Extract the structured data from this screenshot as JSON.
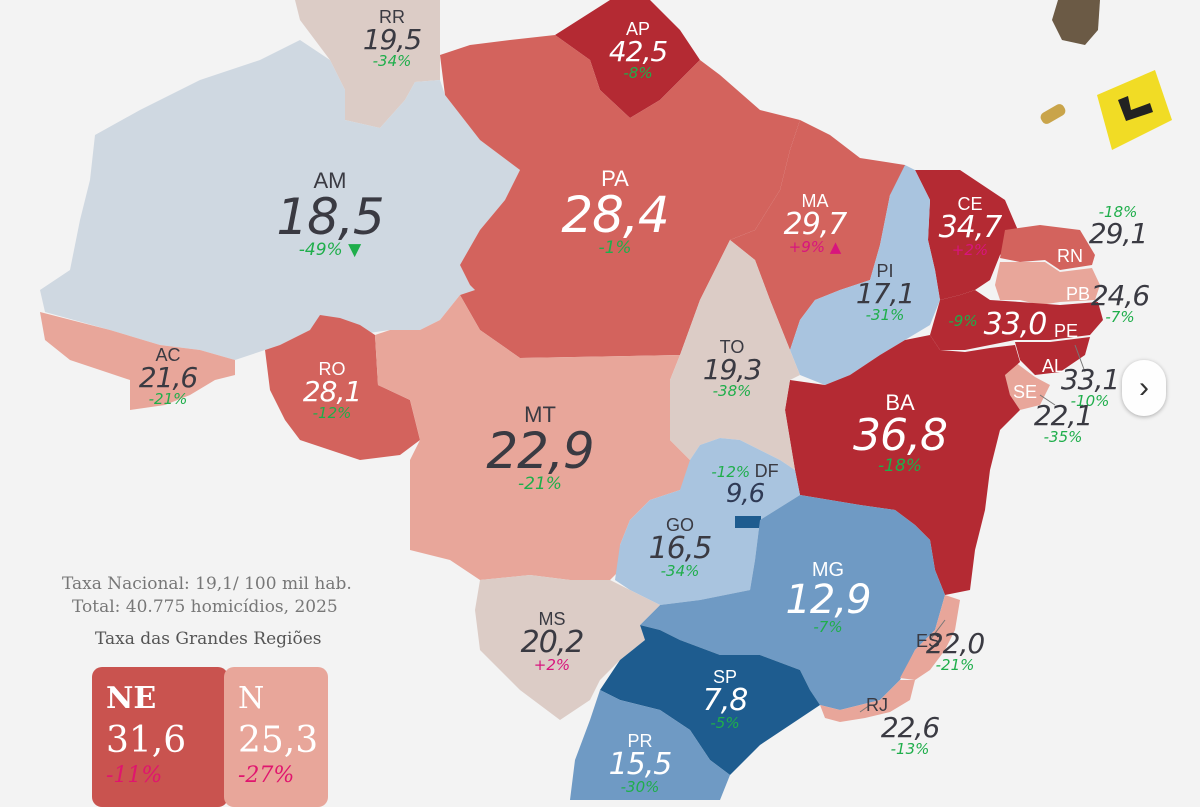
{
  "colors": {
    "dark_red": "#b42a33",
    "red": "#d3635d",
    "salmon": "#e8a69a",
    "beige": "#dcccc6",
    "light_blue": "#a9c4df",
    "pale_blue": "#cfd8e1",
    "mid_blue": "#6f9ac4",
    "dark_blue": "#1e5c8f",
    "increase": "#d8157d",
    "decrease": "#1fae4b"
  },
  "states": [
    {
      "abbr": "RR",
      "value": "19,5",
      "change": "-34%"
    },
    {
      "abbr": "AP",
      "value": "42,5",
      "change": "-8%"
    },
    {
      "abbr": "AM",
      "value": "18,5",
      "change": "-49%"
    },
    {
      "abbr": "PA",
      "value": "28,4",
      "change": "-1%"
    },
    {
      "abbr": "MA",
      "value": "29,7",
      "change": "+9%"
    },
    {
      "abbr": "CE",
      "value": "34,7",
      "change": "+2%"
    },
    {
      "abbr": "RN",
      "value": "29,1",
      "change": "-18%"
    },
    {
      "abbr": "PI",
      "value": "17,1",
      "change": "-31%"
    },
    {
      "abbr": "PB",
      "value": "24,6",
      "change": "-7%"
    },
    {
      "abbr": "PE",
      "value": "33,0",
      "change": "-9%"
    },
    {
      "abbr": "AL",
      "value": "33,1",
      "change": "-10%"
    },
    {
      "abbr": "SE",
      "value": "22,1",
      "change": "-35%"
    },
    {
      "abbr": "AC",
      "value": "21,6",
      "change": "-21%"
    },
    {
      "abbr": "RO",
      "value": "28,1",
      "change": "-12%"
    },
    {
      "abbr": "TO",
      "value": "19,3",
      "change": "-38%"
    },
    {
      "abbr": "MT",
      "value": "22,9",
      "change": "-21%"
    },
    {
      "abbr": "BA",
      "value": "36,8",
      "change": "-18%"
    },
    {
      "abbr": "DF",
      "value": "9,6",
      "change": "-12%"
    },
    {
      "abbr": "GO",
      "value": "16,5",
      "change": "-34%"
    },
    {
      "abbr": "MG",
      "value": "12,9",
      "change": "-7%"
    },
    {
      "abbr": "MS",
      "value": "20,2",
      "change": "+2%"
    },
    {
      "abbr": "ES",
      "value": "22,0",
      "change": "-21%"
    },
    {
      "abbr": "SP",
      "value": "7,8",
      "change": "-5%"
    },
    {
      "abbr": "RJ",
      "value": "22,6",
      "change": "-13%"
    },
    {
      "abbr": "PR",
      "value": "15,5",
      "change": "-30%"
    }
  ],
  "info": {
    "national_rate": "Taxa Nacional: 19,1/ 100 mil hab.",
    "total": "Total: 40.775 homicídios, 2025",
    "regions_title": "Taxa das Grandes Regiões"
  },
  "regions": [
    {
      "abbr": "NE",
      "value": "31,6",
      "change": "-11%"
    },
    {
      "abbr": "N",
      "value": "25,3",
      "change": "-27%"
    }
  ],
  "markers": {
    "up": "▲",
    "down": "▼"
  },
  "nav_icon": "chevron-right-icon",
  "nav_glyph": "›"
}
